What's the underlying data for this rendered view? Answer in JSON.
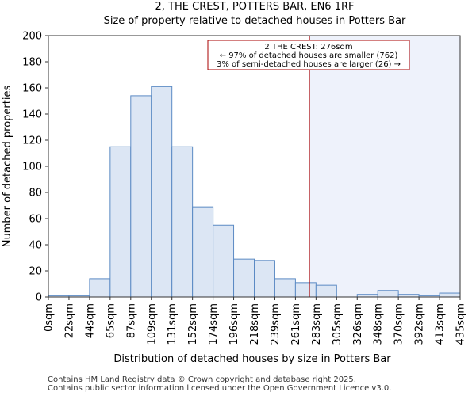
{
  "chart_data": {
    "type": "bar",
    "title_line1": "2, THE CREST, POTTERS BAR, EN6 1RF",
    "title_line2": "Size of property relative to detached houses in Potters Bar",
    "xlabel": "Distribution of detached houses by size in Potters Bar",
    "ylabel": "Number of detached properties",
    "ylim": [
      0,
      200
    ],
    "yticks": [
      0,
      20,
      40,
      60,
      80,
      100,
      120,
      140,
      160,
      180,
      200
    ],
    "bin_edges": [
      0,
      22,
      44,
      65,
      87,
      109,
      131,
      152,
      174,
      196,
      218,
      239,
      261,
      283,
      305,
      326,
      348,
      370,
      392,
      413,
      435
    ],
    "x_tick_labels": [
      "0sqm",
      "22sqm",
      "44sqm",
      "65sqm",
      "87sqm",
      "109sqm",
      "131sqm",
      "152sqm",
      "174sqm",
      "196sqm",
      "218sqm",
      "239sqm",
      "261sqm",
      "283sqm",
      "305sqm",
      "326sqm",
      "348sqm",
      "370sqm",
      "392sqm",
      "413sqm",
      "435sqm"
    ],
    "values": [
      1,
      1,
      14,
      115,
      154,
      161,
      115,
      69,
      55,
      29,
      28,
      14,
      11,
      9,
      0,
      2,
      5,
      2,
      1,
      3
    ],
    "marker_value": 276,
    "annotation": {
      "line1": "2 THE CREST: 276sqm",
      "line2": "← 97% of detached houses are smaller (762)",
      "line3": "3% of semi-detached houses are larger (26) →"
    },
    "colors": {
      "bar_fill": "#dce6f4",
      "bar_edge": "#5b8ac4",
      "marker": "#aa0000",
      "shade": "#eef2fb"
    }
  },
  "footer": {
    "line1": "Contains HM Land Registry data © Crown copyright and database right 2025.",
    "line2": "Contains public sector information licensed under the Open Government Licence v3.0."
  }
}
